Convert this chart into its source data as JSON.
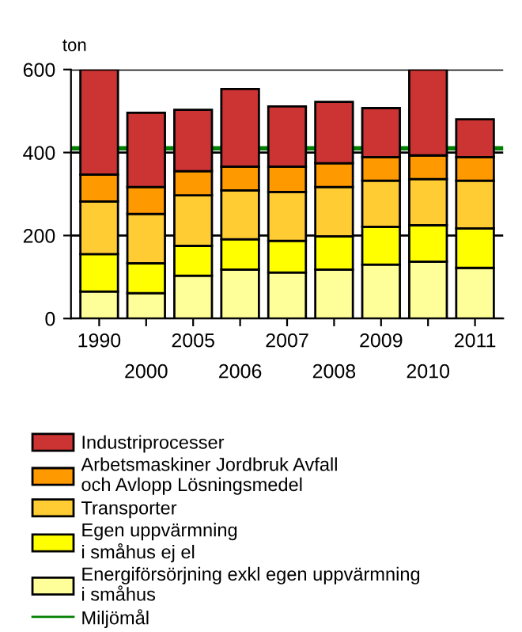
{
  "chart_data": {
    "type": "bar",
    "stacked": true,
    "ylabel": "ton",
    "categories": [
      "1990",
      "2000",
      "2005",
      "2006",
      "2007",
      "2008",
      "2009",
      "2010",
      "2011"
    ],
    "series": [
      {
        "name": "Energiförsörjning exkl egen uppvärmning i småhus",
        "color": "#ffff99",
        "values": [
          65,
          61,
          103,
          118,
          111,
          118,
          130,
          137,
          122
        ]
      },
      {
        "name": "Egen uppvärmning i småhus ej el",
        "color": "#ffff00",
        "values": [
          90,
          72,
          72,
          73,
          76,
          80,
          91,
          88,
          95
        ]
      },
      {
        "name": "Transporter",
        "color": "#ffcc33",
        "values": [
          127,
          119,
          122,
          118,
          118,
          119,
          111,
          111,
          115
        ]
      },
      {
        "name": "Arbetsmaskiner Jordbruk Avfall och Avlopp Lösningsmedel",
        "color": "#ff9900",
        "values": [
          65,
          65,
          58,
          57,
          61,
          57,
          57,
          57,
          57
        ]
      },
      {
        "name": "Industriprocesser",
        "color": "#cc3333",
        "values": [
          253,
          179,
          148,
          187,
          145,
          148,
          118,
          207,
          91
        ]
      }
    ],
    "ylim": [
      0,
      600
    ],
    "yticks": [
      0,
      200,
      400,
      600
    ],
    "grid": "y",
    "legend": "bottom",
    "ref_lines": [
      {
        "axis": "y",
        "value": 410,
        "label": "Miljömål",
        "color": "#008000"
      }
    ]
  }
}
